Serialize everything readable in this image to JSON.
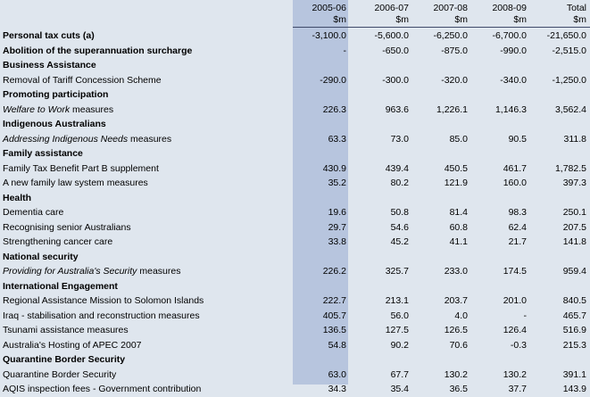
{
  "header": {
    "columns": [
      {
        "year": "2005-06",
        "unit": "$m"
      },
      {
        "year": "2006-07",
        "unit": "$m"
      },
      {
        "year": "2007-08",
        "unit": "$m"
      },
      {
        "year": "2008-09",
        "unit": "$m"
      },
      {
        "year": "Total",
        "unit": "$m"
      }
    ]
  },
  "rows": [
    {
      "label": "Personal tax cuts (a)",
      "values": [
        "-3,100.0",
        "-5,600.0",
        "-6,250.0",
        "-6,700.0",
        "-21,650.0"
      ]
    },
    {
      "label": "Abolition of the superannuation surcharge",
      "values": [
        "-",
        "-650.0",
        "-875.0",
        "-990.0",
        "-2,515.0"
      ]
    },
    {
      "label": "Business Assistance",
      "values": [
        "",
        "",
        "",
        "",
        ""
      ]
    },
    {
      "label": "Removal of Tariff Concession Scheme",
      "values": [
        "-290.0",
        "-300.0",
        "-320.0",
        "-340.0",
        "-1,250.0"
      ]
    },
    {
      "label": "Promoting participation",
      "values": [
        "",
        "",
        "",
        "",
        ""
      ]
    },
    {
      "label_italic": "Welfare to Work",
      "label_rest": " measures",
      "values": [
        "226.3",
        "963.6",
        "1,226.1",
        "1,146.3",
        "3,562.4"
      ]
    },
    {
      "label": "Indigenous Australians",
      "values": [
        "",
        "",
        "",
        "",
        ""
      ]
    },
    {
      "label_italic": "Addressing Indigenous Needs",
      "label_rest": "  measures",
      "values": [
        "63.3",
        "73.0",
        "85.0",
        "90.5",
        "311.8"
      ]
    },
    {
      "label": "Family assistance",
      "values": [
        "",
        "",
        "",
        "",
        ""
      ]
    },
    {
      "label": "Family Tax Benefit Part B supplement",
      "values": [
        "430.9",
        "439.4",
        "450.5",
        "461.7",
        "1,782.5"
      ]
    },
    {
      "label": "A new family law system measures",
      "values": [
        "35.2",
        "80.2",
        "121.9",
        "160.0",
        "397.3"
      ]
    },
    {
      "label": "Health",
      "values": [
        "",
        "",
        "",
        "",
        ""
      ]
    },
    {
      "label": "Dementia care",
      "values": [
        "19.6",
        "50.8",
        "81.4",
        "98.3",
        "250.1"
      ]
    },
    {
      "label": "Recognising senior Australians",
      "values": [
        "29.7",
        "54.6",
        "60.8",
        "62.4",
        "207.5"
      ]
    },
    {
      "label": "Strengthening cancer care",
      "values": [
        "33.8",
        "45.2",
        "41.1",
        "21.7",
        "141.8"
      ]
    },
    {
      "label": "National security",
      "values": [
        "",
        "",
        "",
        "",
        ""
      ]
    },
    {
      "label_italic": "Providing for Australia's Security",
      "label_rest": "  measures",
      "values": [
        "226.2",
        "325.7",
        "233.0",
        "174.5",
        "959.4"
      ]
    },
    {
      "label": "International Engagement",
      "values": [
        "",
        "",
        "",
        "",
        ""
      ]
    },
    {
      "label": "Regional Assistance Mission to Solomon Islands",
      "values": [
        "222.7",
        "213.1",
        "203.7",
        "201.0",
        "840.5"
      ]
    },
    {
      "label": "Iraq - stabilisation and reconstruction measures",
      "values": [
        "405.7",
        "56.0",
        "4.0",
        "-",
        "465.7"
      ]
    },
    {
      "label": "Tsunami assistance measures",
      "values": [
        "136.5",
        "127.5",
        "126.5",
        "126.4",
        "516.9"
      ]
    },
    {
      "label": "Australia's Hosting of APEC 2007",
      "values": [
        "54.8",
        "90.2",
        "70.6",
        "-0.3",
        "215.3"
      ]
    },
    {
      "label": "Quarantine Border Security",
      "values": [
        "",
        "",
        "",
        "",
        ""
      ]
    },
    {
      "label": "Quarantine Border Security",
      "values": [
        "63.0",
        "67.7",
        "130.2",
        "130.2",
        "391.1"
      ]
    },
    {
      "label": "AQIS inspection fees - Government contribution",
      "values": [
        "34.3",
        "35.4",
        "36.5",
        "37.7",
        "143.9"
      ]
    }
  ]
}
